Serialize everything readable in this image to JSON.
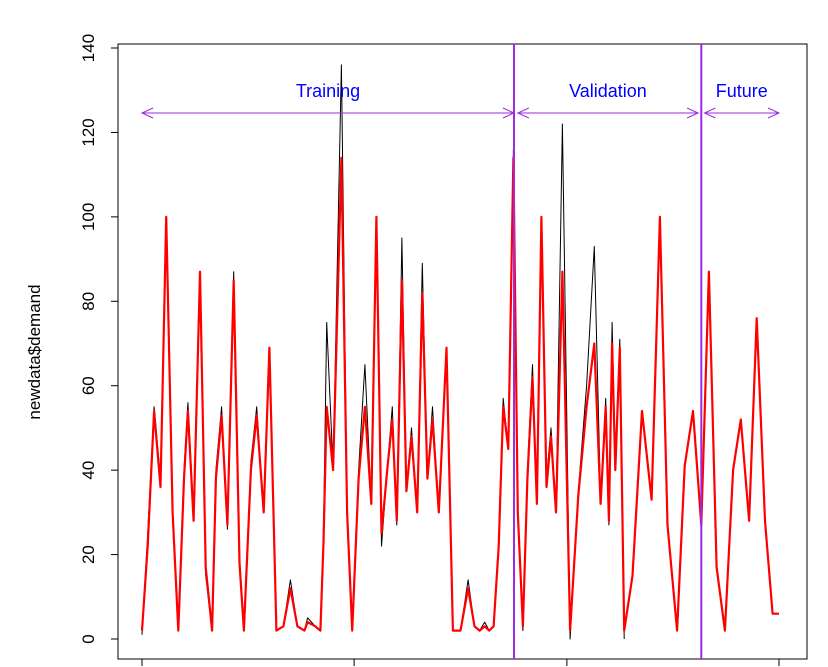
{
  "chart_data": {
    "type": "line",
    "ylabel": "newdata$demand",
    "xlabel": "",
    "ylim": [
      0,
      140
    ],
    "yticks": [
      0,
      20,
      40,
      60,
      80,
      100,
      120,
      140
    ],
    "yticklabels": [
      "0",
      "20",
      "40",
      "60",
      "80",
      "100",
      "120",
      "140"
    ],
    "xlim": [
      0,
      1
    ],
    "xticks": [
      0,
      0.333,
      0.667,
      1.0
    ],
    "grid": false,
    "legend": "none",
    "series": [
      {
        "color": "#000000",
        "x": [
          0.0,
          0.009,
          0.019,
          0.029,
          0.038,
          0.048,
          0.057,
          0.066,
          0.072,
          0.081,
          0.091,
          0.1,
          0.11,
          0.116,
          0.125,
          0.134,
          0.144,
          0.153,
          0.16,
          0.171,
          0.18,
          0.191,
          0.2,
          0.211,
          0.222,
          0.233,
          0.244,
          0.255,
          0.26,
          0.272,
          0.28,
          0.285,
          0.29,
          0.3,
          0.313,
          0.322,
          0.33,
          0.34,
          0.35,
          0.36,
          0.368,
          0.376,
          0.385,
          0.393,
          0.4,
          0.408,
          0.415,
          0.423,
          0.432,
          0.44,
          0.448,
          0.456,
          0.466,
          0.478,
          0.488,
          0.5,
          0.512,
          0.522,
          0.53,
          0.538,
          0.545,
          0.552,
          0.56,
          0.567,
          0.575,
          0.583,
          0.59,
          0.598,
          0.605,
          0.613,
          0.62,
          0.627,
          0.635,
          0.642,
          0.65,
          0.66,
          0.672,
          0.685,
          0.698,
          0.71,
          0.72,
          0.728,
          0.733,
          0.738,
          0.743,
          0.75,
          0.757
        ],
        "values": [
          1,
          25,
          55,
          38,
          100,
          28,
          2,
          40,
          56,
          30,
          87,
          15,
          2,
          40,
          55,
          26,
          87,
          17,
          2,
          42,
          55,
          30,
          69,
          2,
          3,
          14,
          3,
          2,
          5,
          3,
          2,
          25,
          75,
          40,
          136,
          30,
          2,
          40,
          65,
          32,
          100,
          22,
          40,
          55,
          27,
          95,
          35,
          50,
          30,
          89,
          38,
          55,
          30,
          69,
          2,
          2,
          14,
          3,
          2,
          4,
          2,
          3,
          22,
          57,
          45,
          116,
          30,
          2,
          40,
          65,
          32,
          100,
          38,
          50,
          30,
          122,
          0,
          35,
          60,
          93,
          33,
          57,
          27,
          75,
          42,
          71,
          0
        ]
      },
      {
        "color": "#ff0000",
        "x": [
          0.0,
          0.009,
          0.019,
          0.029,
          0.038,
          0.048,
          0.057,
          0.066,
          0.072,
          0.081,
          0.091,
          0.1,
          0.11,
          0.116,
          0.125,
          0.134,
          0.144,
          0.153,
          0.16,
          0.171,
          0.18,
          0.191,
          0.2,
          0.211,
          0.222,
          0.233,
          0.244,
          0.255,
          0.26,
          0.272,
          0.28,
          0.285,
          0.29,
          0.3,
          0.313,
          0.322,
          0.33,
          0.34,
          0.35,
          0.36,
          0.368,
          0.376,
          0.385,
          0.393,
          0.4,
          0.408,
          0.415,
          0.423,
          0.432,
          0.44,
          0.448,
          0.456,
          0.466,
          0.478,
          0.488,
          0.5,
          0.512,
          0.522,
          0.53,
          0.538,
          0.545,
          0.552,
          0.56,
          0.567,
          0.575,
          0.583,
          0.59,
          0.598,
          0.605,
          0.613,
          0.62,
          0.627,
          0.635,
          0.642,
          0.65,
          0.66,
          0.672,
          0.685,
          0.698,
          0.71,
          0.72,
          0.728,
          0.733,
          0.738,
          0.743,
          0.75,
          0.757,
          0.77,
          0.785,
          0.8,
          0.813,
          0.825,
          0.84,
          0.852,
          0.865,
          0.878,
          0.89,
          0.902,
          0.915,
          0.928,
          0.94,
          0.953,
          0.965,
          0.978,
          0.99,
          1.0
        ],
        "values": [
          2,
          22,
          54,
          36,
          100,
          30,
          2,
          38,
          54,
          28,
          87,
          17,
          2,
          38,
          53,
          27,
          85,
          18,
          2,
          40,
          53,
          30,
          69,
          2,
          3,
          12,
          3,
          2,
          4,
          3,
          2,
          23,
          55,
          40,
          114,
          30,
          2,
          38,
          55,
          32,
          100,
          25,
          40,
          52,
          28,
          85,
          35,
          48,
          30,
          82,
          38,
          52,
          30,
          69,
          2,
          2,
          12,
          3,
          2,
          3,
          2,
          3,
          22,
          55,
          45,
          114,
          30,
          3,
          38,
          62,
          32,
          100,
          36,
          48,
          30,
          87,
          2,
          34,
          55,
          70,
          32,
          55,
          28,
          70,
          40,
          69,
          2,
          15,
          54,
          33,
          100,
          27,
          2,
          41,
          54,
          27,
          87,
          17,
          2,
          40,
          52,
          28,
          76,
          28,
          6,
          6
        ]
      }
    ],
    "vlines": [
      0.584,
      0.878
    ],
    "annotations": [
      {
        "text": "Training",
        "x_from": 0.0,
        "x_to": 0.584
      },
      {
        "text": "Validation",
        "x_from": 0.59,
        "x_to": 0.873
      },
      {
        "text": "Future",
        "x_from": 0.883,
        "x_to": 1.0
      }
    ],
    "colors": {
      "actual": "#000000",
      "fitted": "#ff0000",
      "divider": "#9a2be2",
      "arrow": "#9a2be2",
      "annotation_text": "#0000ff"
    }
  }
}
